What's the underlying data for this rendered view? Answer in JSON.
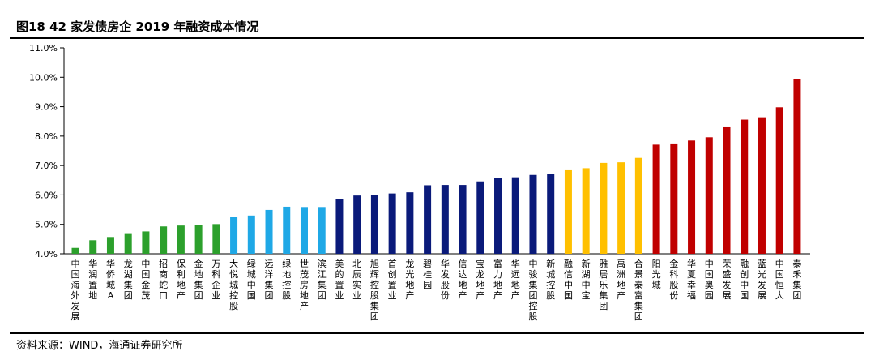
{
  "header": {
    "title": "图18 42 家发债房企 2019 年融资成本情况"
  },
  "footer": {
    "source": "资料来源：WIND，海通证券研究所"
  },
  "colors": {
    "green": "#2ca02c",
    "lightblue": "#1fa8e6",
    "navy": "#0a1a7a",
    "gold": "#ffc000",
    "red": "#c00000"
  },
  "chart_data": {
    "type": "bar",
    "title": "",
    "xlabel": "",
    "ylabel": "",
    "ylim": [
      4.0,
      11.0
    ],
    "yticks": [
      "4.0%",
      "5.0%",
      "6.0%",
      "7.0%",
      "8.0%",
      "9.0%",
      "10.0%",
      "11.0%"
    ],
    "ytick_values": [
      4.0,
      5.0,
      6.0,
      7.0,
      8.0,
      9.0,
      10.0,
      11.0
    ],
    "grid": false,
    "categories": [
      "中国海外发展",
      "华润置地",
      "华侨城A",
      "龙湖集团",
      "中国金茂",
      "招商蛇口",
      "保利地产",
      "金地集团",
      "万科企业",
      "大悦城控股",
      "绿城中国",
      "远洋集团",
      "绿地控股",
      "世茂房地产",
      "滨江集团",
      "美的置业",
      "北辰实业",
      "旭辉控股集团",
      "首创置业",
      "龙光地产",
      "碧桂园",
      "华发股份",
      "信达地产",
      "宝龙地产",
      "富力地产",
      "华远地产",
      "中骏集团控股",
      "新城控股",
      "融信中国",
      "新湖中宝",
      "雅居乐集团",
      "禹洲地产",
      "合景泰富集团",
      "阳光城",
      "金科股份",
      "华夏幸福",
      "中国奥园",
      "荣盛发展",
      "融创中国",
      "蓝光发展",
      "中国恒大",
      "泰禾集团"
    ],
    "values": [
      4.2,
      4.46,
      4.57,
      4.7,
      4.76,
      4.93,
      4.96,
      4.99,
      5.01,
      5.24,
      5.3,
      5.49,
      5.6,
      5.59,
      5.59,
      5.87,
      5.98,
      6.0,
      6.05,
      6.09,
      6.33,
      6.34,
      6.34,
      6.46,
      6.59,
      6.6,
      6.68,
      6.72,
      6.84,
      6.91,
      7.09,
      7.11,
      7.26,
      7.71,
      7.75,
      7.85,
      7.96,
      8.3,
      8.56,
      8.64,
      8.98,
      9.94
    ],
    "bar_colors": [
      "green",
      "green",
      "green",
      "green",
      "green",
      "green",
      "green",
      "green",
      "green",
      "lightblue",
      "lightblue",
      "lightblue",
      "lightblue",
      "lightblue",
      "lightblue",
      "navy",
      "navy",
      "navy",
      "navy",
      "navy",
      "navy",
      "navy",
      "navy",
      "navy",
      "navy",
      "navy",
      "navy",
      "navy",
      "gold",
      "gold",
      "gold",
      "gold",
      "gold",
      "red",
      "red",
      "red",
      "red",
      "red",
      "red",
      "red",
      "red",
      "red"
    ]
  }
}
